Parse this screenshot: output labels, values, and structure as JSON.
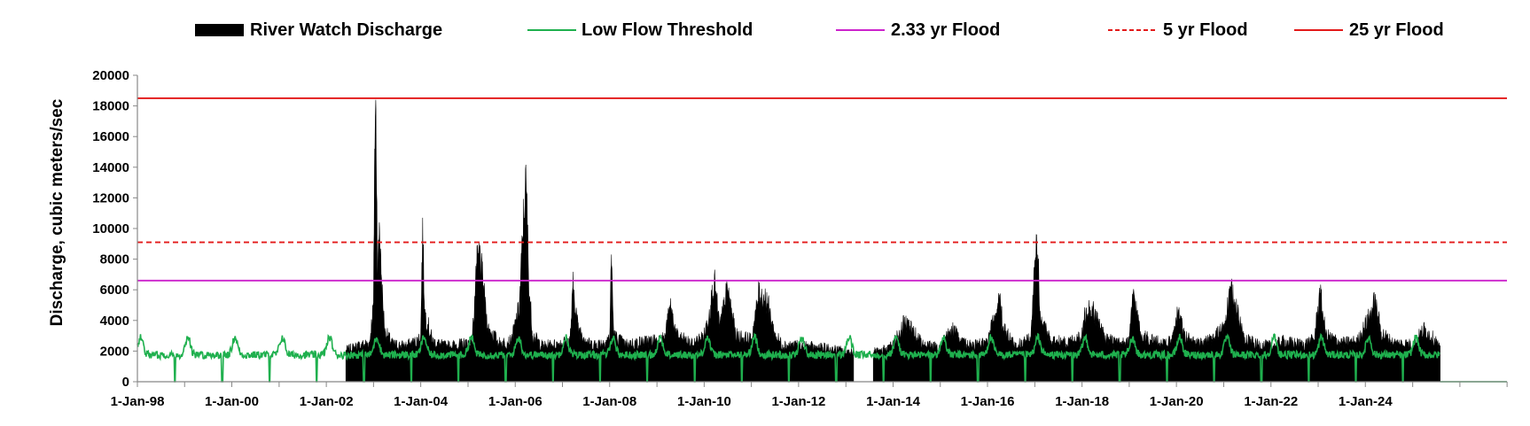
{
  "chart_data": {
    "type": "area",
    "ylabel": "Discharge, cubic meters/sec",
    "xlabel": "",
    "ylim": [
      0,
      20000
    ],
    "yticks": [
      0,
      2000,
      4000,
      6000,
      8000,
      10000,
      12000,
      14000,
      16000,
      18000,
      20000
    ],
    "ytick_labels": [
      "0",
      "2000",
      "4000",
      "6000",
      "8000",
      "10000",
      "12000",
      "14000",
      "16000",
      "18000",
      "20000"
    ],
    "xlim": [
      "1998-01-01",
      "2026-12-31"
    ],
    "xticks": [
      "1998-01-01",
      "2000-01-01",
      "2002-01-01",
      "2004-01-01",
      "2006-01-01",
      "2008-01-01",
      "2010-01-01",
      "2012-01-01",
      "2014-01-01",
      "2016-01-01",
      "2018-01-01",
      "2020-01-01",
      "2022-01-01",
      "2024-01-01"
    ],
    "xtick_labels": [
      "1-Jan-98",
      "1-Jan-00",
      "1-Jan-02",
      "1-Jan-04",
      "1-Jan-06",
      "1-Jan-08",
      "1-Jan-10",
      "1-Jan-12",
      "1-Jan-14",
      "1-Jan-16",
      "1-Jan-18",
      "1-Jan-20",
      "1-Jan-22",
      "1-Jan-24"
    ],
    "grid": false,
    "legend_position": "top",
    "series": [
      {
        "name": "River Watch Discharge",
        "kind": "area",
        "color": "#000000",
        "segments": [
          {
            "x": [
              "2002-06-01",
              "2002-09-01",
              "2002-12-01",
              "2003-01-01",
              "2003-01-10",
              "2003-01-20",
              "2003-02-01",
              "2003-02-15",
              "2003-03-01",
              "2003-03-15",
              "2003-04-01",
              "2003-06-01",
              "2003-09-01",
              "2003-12-01",
              "2004-01-01",
              "2004-01-15",
              "2004-02-01",
              "2004-04-01",
              "2004-07-01",
              "2004-11-01",
              "2005-02-01",
              "2005-03-10",
              "2005-04-01",
              "2005-06-01",
              "2005-09-01",
              "2005-12-01",
              "2006-02-01",
              "2006-03-20",
              "2006-04-01",
              "2006-04-15",
              "2006-05-15",
              "2006-08-01",
              "2006-11-01",
              "2007-03-01",
              "2007-03-25",
              "2007-05-01",
              "2007-08-01",
              "2007-11-01",
              "2008-01-01",
              "2008-01-15",
              "2008-02-01",
              "2008-05-01",
              "2008-10-01",
              "2009-03-01",
              "2009-04-15",
              "2009-06-01",
              "2009-10-01",
              "2010-01-01",
              "2010-02-20",
              "2010-03-20",
              "2010-05-01",
              "2010-07-01",
              "2010-09-01",
              "2011-01-01",
              "2011-03-01",
              "2011-05-01",
              "2011-07-01",
              "2011-09-01",
              "2012-01-01",
              "2012-06-01",
              "2012-12-01",
              "2013-03-01"
            ],
            "y": [
              2000,
              2300,
              2500,
              5000,
              15200,
              17800,
              6500,
              10400,
              7000,
              4800,
              3200,
              2400,
              2300,
              2600,
              3000,
              9800,
              4500,
              2600,
              2300,
              2400,
              2600,
              7500,
              8300,
              3500,
              2500,
              2600,
              4800,
              12800,
              11500,
              6500,
              3000,
              2300,
              2400,
              2700,
              6200,
              3500,
              2400,
              2500,
              2800,
              8300,
              3000,
              2400,
              2600,
              2800,
              4900,
              3000,
              2400,
              3000,
              5000,
              6500,
              3500,
              6000,
              3000,
              2700,
              5700,
              5300,
              3000,
              2400,
              2300,
              2200,
              2000,
              1900
            ]
          },
          {
            "x": [
              "2013-08-01",
              "2013-12-01",
              "2014-01-01",
              "2014-04-01",
              "2014-09-01",
              "2015-01-01",
              "2015-04-01",
              "2015-08-01",
              "2016-01-01",
              "2016-04-01",
              "2016-05-01",
              "2016-08-01",
              "2016-12-01",
              "2017-01-15",
              "2017-02-15",
              "2017-05-01",
              "2017-09-01",
              "2018-01-01",
              "2018-02-01",
              "2018-04-01",
              "2018-07-01",
              "2018-11-01",
              "2019-01-01",
              "2019-02-01",
              "2019-04-01",
              "2019-09-01",
              "2019-12-01",
              "2020-01-15",
              "2020-03-01",
              "2020-06-01",
              "2020-10-01",
              "2021-01-01",
              "2021-03-01",
              "2021-04-15",
              "2021-06-01",
              "2021-09-01",
              "2022-01-01",
              "2022-04-01",
              "2022-09-01",
              "2022-12-01",
              "2023-01-15",
              "2023-03-01",
              "2023-07-01",
              "2023-11-01",
              "2024-02-01",
              "2024-03-15",
              "2024-05-01",
              "2024-08-01",
              "2025-01-01",
              "2025-04-01",
              "2025-07-01",
              "2025-08-01"
            ],
            "y": [
              1900,
              2100,
              2500,
              3900,
              2300,
              2300,
              3400,
              2300,
              2500,
              5400,
              3500,
              2300,
              2800,
              9600,
              4000,
              2700,
              2500,
              3000,
              4800,
              4500,
              2800,
              2400,
              2600,
              5800,
              3000,
              2500,
              2600,
              4600,
              3000,
              2400,
              2700,
              3500,
              5900,
              4500,
              3000,
              2400,
              2300,
              2600,
              2400,
              2700,
              5800,
              3000,
              2500,
              2600,
              4200,
              5200,
              3200,
              2500,
              2400,
              3400,
              2600,
              2000
            ]
          }
        ]
      },
      {
        "name": "Low Flow Threshold",
        "kind": "line",
        "color": "#1fb04e",
        "x_start": "1998-01-01",
        "x_end": "2025-08-01",
        "base": 1750,
        "annual_peak": 2900,
        "dip_to": 0
      },
      {
        "name": "2.33 yr Flood",
        "kind": "hline",
        "color": "#cc22cc",
        "value": 6600
      },
      {
        "name": "5 yr Flood",
        "kind": "hline",
        "color": "#e31a1a",
        "dashed": true,
        "value": 9100
      },
      {
        "name": "25 yr Flood",
        "kind": "hline",
        "color": "#e31a1a",
        "value": 18500
      }
    ]
  }
}
